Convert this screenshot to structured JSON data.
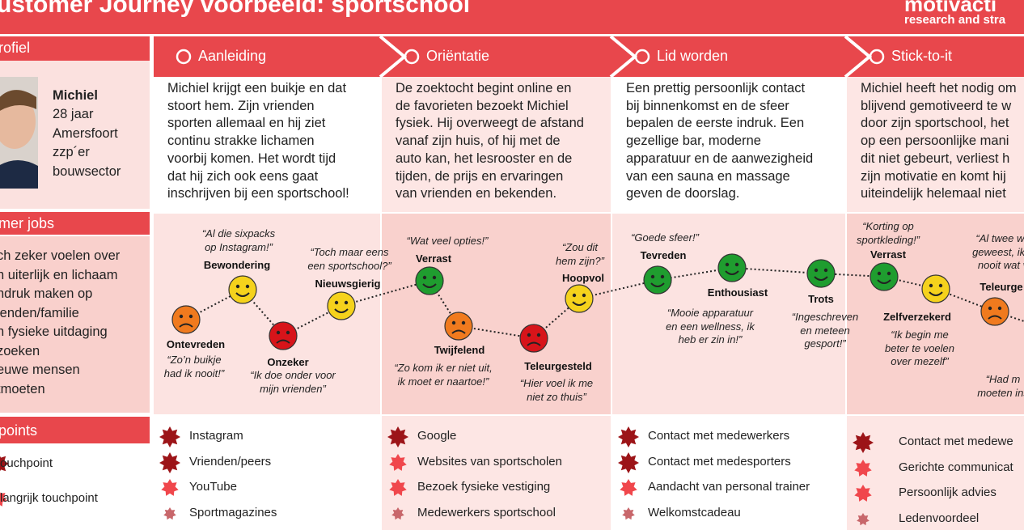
{
  "header": {
    "title": "ustomer Journey voorbeeld: sportschool",
    "logo": "motivacti",
    "logo_sub": "research and stra"
  },
  "sidebar": {
    "profile_title": "rofiel",
    "name": "Michiel",
    "details": [
      "28 jaar",
      "Amersfoort",
      "zzp´er",
      "bouwsector"
    ],
    "jobs_title": "mer jobs",
    "jobs": [
      "ch zeker voelen over",
      "n uiterlijk en lichaam",
      "ndruk maken op",
      "ienden/familie",
      "n fysieke uitdaging",
      "zoeken",
      "euwe mensen",
      "tmoeten"
    ],
    "touchpoints_title": "points",
    "legend": [
      "ouchpoint",
      "langrijk touchpoint"
    ]
  },
  "stages": [
    {
      "title": "Aanleiding",
      "description": [
        "Michiel krijgt een buikje en dat",
        "stoort hem. Zijn vrienden",
        "sporten allemaal en hij ziet",
        "continu strakke lichamen",
        "voorbij komen. Het wordt tijd",
        "dat hij zich ook eens gaat",
        "inschrijven bij een sportschool!"
      ],
      "emotions": [
        {
          "label": "Ontevreden",
          "color": "#f07a1e",
          "quote": [
            "“Zo’n buikje",
            "had ik nooit!”"
          ]
        },
        {
          "label": "Bewondering",
          "color": "#f5d21c",
          "quote": [
            "“Al die sixpacks",
            "op Instagram!”"
          ]
        },
        {
          "label": "Onzeker",
          "color": "#d7141a",
          "quote": [
            "“Ik doe onder voor",
            "mijn vrienden”"
          ]
        },
        {
          "label": "Nieuwsgierig",
          "color": "#f5d21c",
          "quote": [
            "“Toch maar eens",
            "een sportschool?”"
          ]
        }
      ],
      "touchpoints": [
        {
          "text": "Instagram",
          "level": 1
        },
        {
          "text": "Vrienden/peers",
          "level": 1
        },
        {
          "text": "YouTube",
          "level": 2
        },
        {
          "text": "Sportmagazines",
          "level": 3
        }
      ]
    },
    {
      "title": "Oriëntatie",
      "description": [
        "De zoektocht begint online en",
        "de favorieten bezoekt Michiel",
        "fysiek. Hij overweegt de afstand",
        "vanaf zijn huis, of hij met de",
        "auto kan, het lesrooster en de",
        "tijden, de prijs en ervaringen",
        "van vrienden en bekenden."
      ],
      "emotions": [
        {
          "label": "Verrast",
          "color": "#1f9d2f",
          "quote": [
            "“Wat veel opties!”"
          ]
        },
        {
          "label": "Twijfelend",
          "color": "#f07a1e",
          "quote": [
            "“Zo kom ik er niet uit,",
            "ik moet er naartoe!”"
          ]
        },
        {
          "label": "Teleurgesteld",
          "color": "#d7141a",
          "quote": [
            "“Hier voel ik me",
            "niet zo thuis”"
          ]
        },
        {
          "label": "Hoopvol",
          "color": "#f5d21c",
          "quote": [
            "“Zou dit",
            "hem zijn?”"
          ]
        }
      ],
      "touchpoints": [
        {
          "text": "Google",
          "level": 1
        },
        {
          "text": "Websites van sportscholen",
          "level": 2
        },
        {
          "text": "Bezoek fysieke vestiging",
          "level": 2
        },
        {
          "text": "Medewerkers sportschool",
          "level": 3
        }
      ]
    },
    {
      "title": "Lid worden",
      "description": [
        "Een prettig persoonlijk contact",
        "bij binnenkomst en de sfeer",
        "bepalen de eerste indruk. Een",
        "gezellige bar, moderne",
        "apparatuur en de aanwezigheid",
        "van een sauna en massage",
        "geven de doorslag."
      ],
      "emotions": [
        {
          "label": "Tevreden",
          "color": "#1f9d2f",
          "quote": [
            "“Goede sfeer!”"
          ]
        },
        {
          "label": "Enthousiast",
          "color": "#1f9d2f",
          "quote": [
            "“Mooie apparatuur",
            "en een wellness, ik",
            "heb er zin in!”"
          ]
        },
        {
          "label": "Trots",
          "color": "#1f9d2f",
          "quote": [
            "“Ingeschreven",
            "en meteen",
            "gesport!”"
          ]
        }
      ],
      "touchpoints": [
        {
          "text": "Contact met medewerkers",
          "level": 1
        },
        {
          "text": "Contact met medesporters",
          "level": 1
        },
        {
          "text": "Aandacht van personal trainer",
          "level": 2
        },
        {
          "text": "Welkomstcadeau",
          "level": 3
        }
      ]
    },
    {
      "title": "Stick-to-it",
      "description": [
        "Michiel heeft het nodig om",
        "blijvend gemotiveerd te w",
        "door zijn sportschool, het",
        "op een persoonlijke mani",
        "dit niet gebeurt, verliest h",
        "zijn motivatie en komt hij",
        "uiteindelijk helemaal niet"
      ],
      "emotions": [
        {
          "label": "Verrast",
          "color": "#1f9d2f",
          "quote": [
            "“Korting op",
            "sportkleding!”"
          ]
        },
        {
          "label": "Zelfverzekerd",
          "color": "#f5d21c",
          "quote": [
            "“Ik begin me",
            "beter te voelen",
            "over mezelf”"
          ]
        },
        {
          "label": "Teleurge",
          "color": "#f07a1e",
          "quote": [
            "“Al twee we",
            "geweest, ik h",
            "nooit wat v"
          ]
        }
      ],
      "more_quotes": [
        [
          "“Had m",
          "moeten ins"
        ]
      ],
      "touchpoints": [
        {
          "text": "Contact met medewe",
          "level": 1
        },
        {
          "text": "Gerichte communicat",
          "level": 2
        },
        {
          "text": "Persoonlijk advies",
          "level": 2
        },
        {
          "text": "Ledenvoordeel",
          "level": 3
        }
      ]
    }
  ]
}
